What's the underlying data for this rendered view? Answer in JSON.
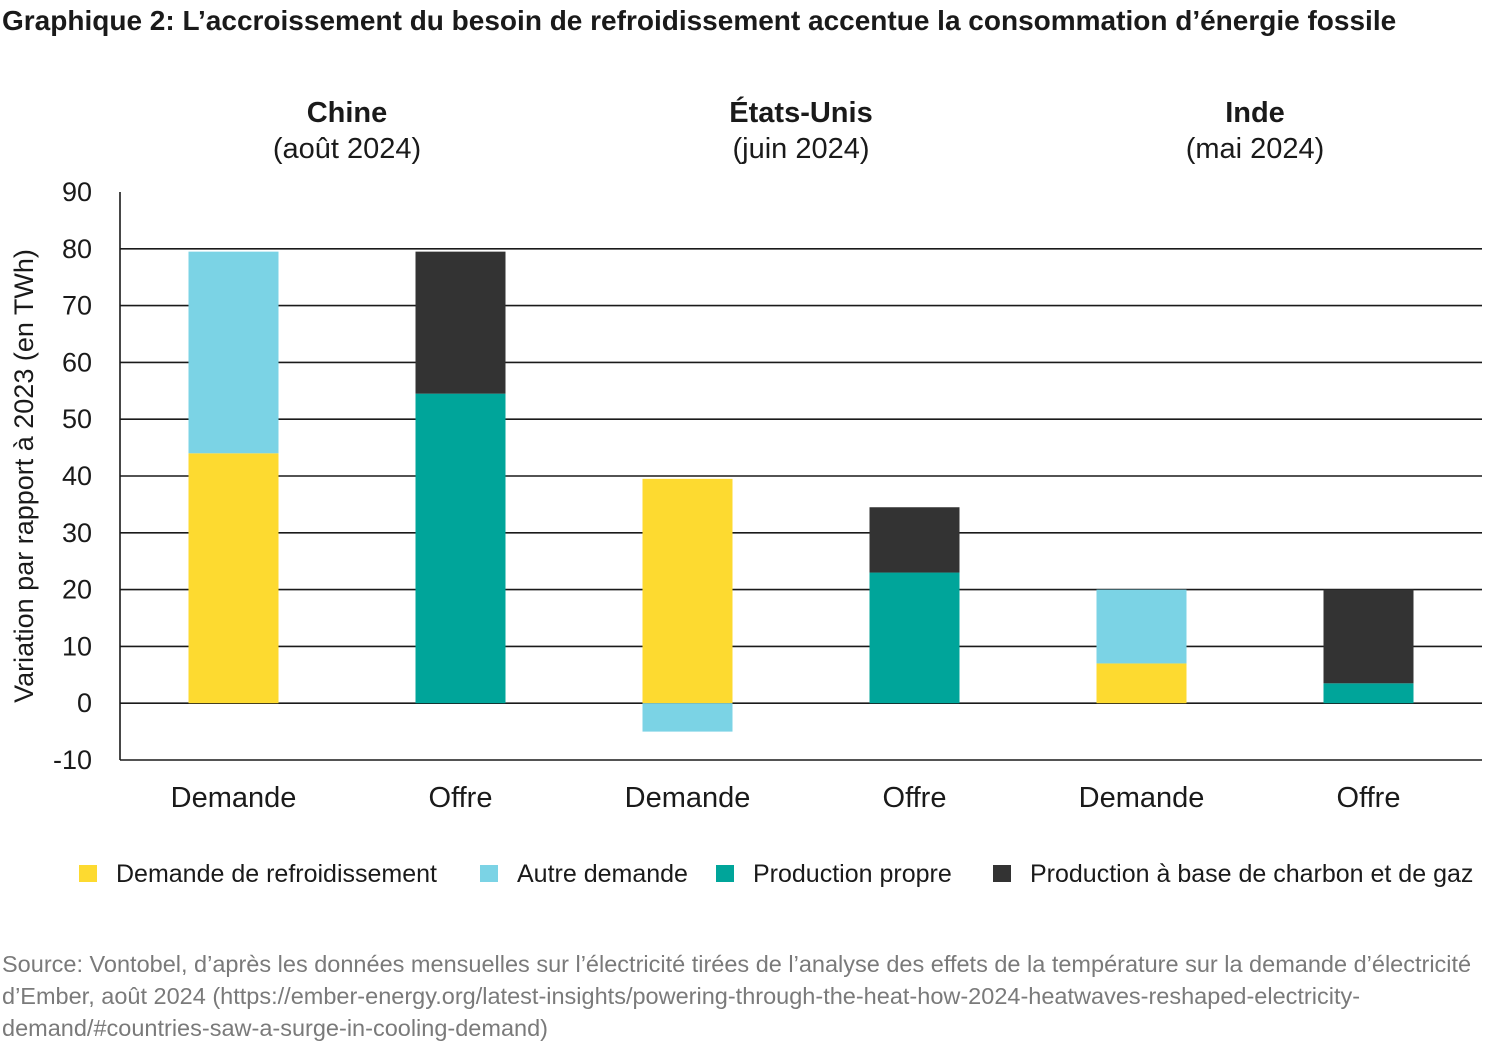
{
  "title": "Graphique 2: L’accroissement du besoin de refroidissement accentue la consommation d’énergie fossile",
  "source": "Source: Vontobel, d’après les données mensuelles sur l’électricité tirées de l’analyse des effets de la température sur la demande d’électricité d’Ember, août 2024 (https://ember-energy.org/latest-insights/powering-through-the-heat-how-2024-heatwaves-reshaped-electricity-demand/#countries-saw-a-surge-in-cooling-demand)",
  "chart_data": {
    "type": "bar",
    "stacked": true,
    "ylabel": "Variation par rapport à 2023 (en TWh)",
    "ylim": [
      -10,
      90
    ],
    "yticks": [
      90,
      80,
      70,
      60,
      50,
      40,
      30,
      20,
      10,
      0,
      -10
    ],
    "grid": "horizontal",
    "legend_position": "bottom",
    "groups": [
      {
        "name": "Chine",
        "period": "(août 2024)"
      },
      {
        "name": "États-Unis",
        "period": "(juin 2024)"
      },
      {
        "name": "Inde",
        "period": "(mai 2024)"
      }
    ],
    "categories": [
      "Demande",
      "Offre",
      "Demande",
      "Offre",
      "Demande",
      "Offre"
    ],
    "category_group": [
      0,
      0,
      1,
      1,
      2,
      2
    ],
    "series": [
      {
        "name": "Demande de refroidissement",
        "color": "#fdda30",
        "values": [
          44,
          0,
          39.5,
          0,
          7,
          0
        ]
      },
      {
        "name": "Autre demande",
        "color": "#7bd3e5",
        "values": [
          35.5,
          0,
          -5,
          0,
          13,
          0
        ]
      },
      {
        "name": "Production propre",
        "color": "#00a59a",
        "values": [
          0,
          54.5,
          0,
          23,
          0,
          3.5
        ]
      },
      {
        "name": "Production à base de charbon et de gaz",
        "color": "#333333",
        "values": [
          0,
          25,
          0,
          11.5,
          0,
          16.5
        ]
      }
    ]
  }
}
